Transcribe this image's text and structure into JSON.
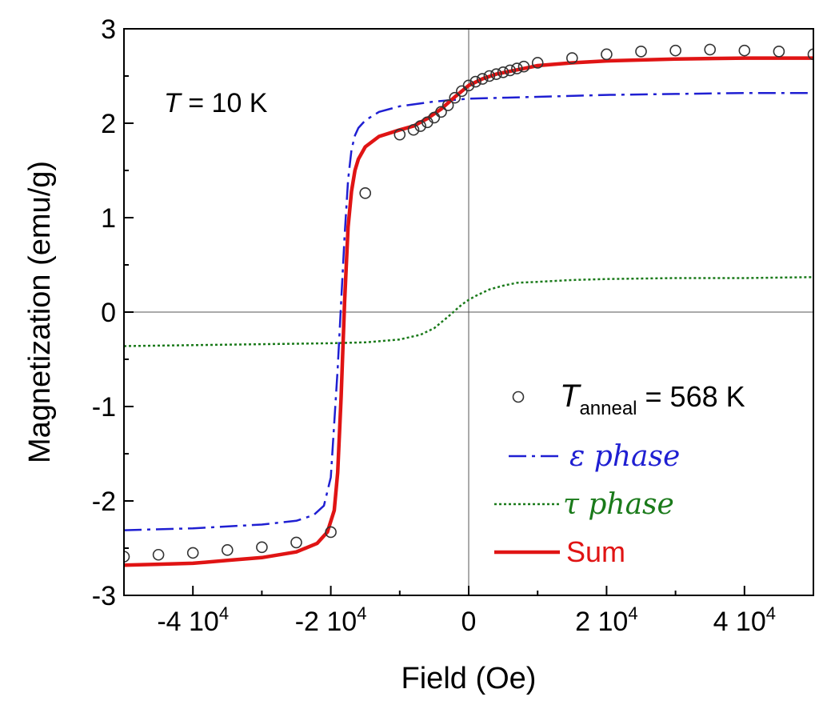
{
  "chart_data": {
    "type": "line",
    "title": "",
    "xlabel": "Field (Oe)",
    "ylabel": "Magnetization (emu/g)",
    "xlim": [
      -50000,
      50000
    ],
    "ylim": [
      -3,
      3
    ],
    "grid": false,
    "zero_lines": true,
    "x_ticks": [
      {
        "value": -40000,
        "base": "-4 10",
        "exp": "4"
      },
      {
        "value": -20000,
        "base": "-2 10",
        "exp": "4"
      },
      {
        "value": 0,
        "base": "0",
        "exp": ""
      },
      {
        "value": 20000,
        "base": "2 10",
        "exp": "4"
      },
      {
        "value": 40000,
        "base": "4 10",
        "exp": "4"
      }
    ],
    "y_ticks": [
      {
        "value": 3,
        "label": "3"
      },
      {
        "value": 2,
        "label": "2"
      },
      {
        "value": 1,
        "label": "1"
      },
      {
        "value": 0,
        "label": "0"
      },
      {
        "value": -1,
        "label": "-1"
      },
      {
        "value": -2,
        "label": "-2"
      },
      {
        "value": -3,
        "label": "-3"
      }
    ],
    "annotation": {
      "symbol": "T",
      "text": " = 10 K"
    },
    "legend_position": "bottom-right",
    "series": [
      {
        "name": "T_anneal = 568 K",
        "legend_symbol": "T",
        "legend_sub": "anneal",
        "legend_rest": " = 568 K",
        "style": "markers",
        "color": "#333333",
        "x": [
          -50000,
          -45000,
          -40000,
          -35000,
          -30000,
          -25000,
          -20000,
          -15000,
          -10000,
          -8000,
          -7000,
          -6000,
          -5000,
          -4000,
          -3000,
          -2000,
          -1000,
          0,
          1000,
          2000,
          3000,
          4000,
          5000,
          6000,
          7000,
          8000,
          10000,
          15000,
          20000,
          25000,
          30000,
          35000,
          40000,
          45000,
          50000
        ],
        "y": [
          -2.59,
          -2.57,
          -2.55,
          -2.52,
          -2.49,
          -2.44,
          -2.33,
          1.26,
          1.88,
          1.93,
          1.97,
          2.01,
          2.06,
          2.12,
          2.19,
          2.27,
          2.34,
          2.4,
          2.44,
          2.47,
          2.5,
          2.52,
          2.54,
          2.56,
          2.58,
          2.6,
          2.64,
          2.69,
          2.73,
          2.76,
          2.77,
          2.78,
          2.77,
          2.76,
          2.73
        ]
      },
      {
        "name": "ε phase",
        "legend_greek": "ε",
        "legend_rest": " phase",
        "style": "dash-dot",
        "color": "#1f1fd2",
        "x": [
          -50000,
          -40000,
          -30000,
          -25000,
          -22500,
          -21000,
          -20000,
          -19000,
          -18500,
          -18000,
          -17500,
          -17000,
          -16500,
          -16000,
          -15000,
          -13000,
          -10000,
          -5000,
          0,
          10000,
          20000,
          30000,
          40000,
          50000
        ],
        "y": [
          -2.31,
          -2.29,
          -2.25,
          -2.21,
          -2.15,
          -2.05,
          -1.75,
          -0.6,
          0.1,
          0.8,
          1.4,
          1.72,
          1.87,
          1.95,
          2.03,
          2.12,
          2.18,
          2.23,
          2.26,
          2.28,
          2.3,
          2.31,
          2.32,
          2.32
        ]
      },
      {
        "name": "τ phase",
        "legend_greek": "τ",
        "legend_rest": " phase",
        "style": "dotted",
        "color": "#1a7a1a",
        "x": [
          -50000,
          -40000,
          -30000,
          -20000,
          -15000,
          -10000,
          -7000,
          -5000,
          -3000,
          -1000,
          0,
          1000,
          3000,
          5000,
          7000,
          10000,
          15000,
          20000,
          30000,
          40000,
          50000
        ],
        "y": [
          -0.36,
          -0.35,
          -0.34,
          -0.33,
          -0.32,
          -0.29,
          -0.24,
          -0.17,
          -0.05,
          0.08,
          0.13,
          0.17,
          0.24,
          0.28,
          0.31,
          0.32,
          0.34,
          0.35,
          0.36,
          0.36,
          0.37
        ]
      },
      {
        "name": "Sum",
        "legend_rest": "Sum",
        "style": "solid",
        "color": "#e01414",
        "x": [
          -50000,
          -45000,
          -40000,
          -35000,
          -30000,
          -25000,
          -22000,
          -20500,
          -19500,
          -19000,
          -18500,
          -18000,
          -17500,
          -17000,
          -16500,
          -16000,
          -15000,
          -13000,
          -10000,
          -8000,
          -6000,
          -4000,
          -2000,
          0,
          2000,
          4000,
          6000,
          8000,
          10000,
          15000,
          20000,
          30000,
          40000,
          50000
        ],
        "y": [
          -2.68,
          -2.67,
          -2.66,
          -2.63,
          -2.6,
          -2.54,
          -2.45,
          -2.33,
          -2.1,
          -1.7,
          -0.9,
          0.1,
          0.9,
          1.28,
          1.5,
          1.62,
          1.75,
          1.86,
          1.93,
          1.97,
          2.05,
          2.15,
          2.28,
          2.4,
          2.47,
          2.52,
          2.55,
          2.58,
          2.61,
          2.64,
          2.66,
          2.68,
          2.69,
          2.69
        ]
      }
    ]
  }
}
